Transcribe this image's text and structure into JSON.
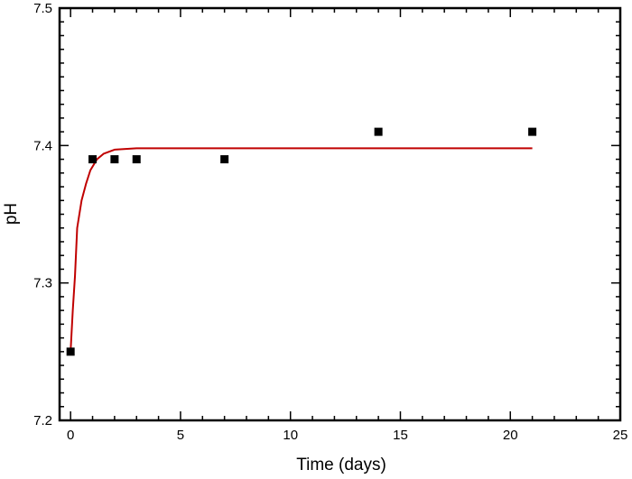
{
  "chart_data": {
    "type": "scatter",
    "xlabel": "Time (days)",
    "ylabel": "pH",
    "xlim": [
      -0.5,
      25
    ],
    "ylim": [
      7.2,
      7.5
    ],
    "xticks": [
      0,
      5,
      10,
      15,
      20,
      25
    ],
    "yticks": [
      7.2,
      7.3,
      7.4,
      7.5
    ],
    "x_tick_labels": [
      "0",
      "5",
      "10",
      "15",
      "20",
      "25"
    ],
    "y_tick_labels": [
      "7.2",
      "7.3",
      "7.4",
      "7.5"
    ],
    "grid": false,
    "series": [
      {
        "kind": "points",
        "marker": "square",
        "color": "#000000",
        "x": [
          0,
          1,
          2,
          3,
          7,
          14,
          21
        ],
        "y": [
          7.25,
          7.39,
          7.39,
          7.39,
          7.39,
          7.41,
          7.41
        ]
      },
      {
        "kind": "fit-line",
        "color": "#c00000",
        "x": [
          0,
          0.1,
          0.2,
          0.3,
          0.5,
          0.7,
          0.9,
          1.2,
          1.5,
          2,
          3,
          5,
          8,
          12,
          16,
          21
        ],
        "y": [
          7.25,
          7.28,
          7.305,
          7.34,
          7.36,
          7.372,
          7.382,
          7.39,
          7.394,
          7.397,
          7.398,
          7.398,
          7.398,
          7.398,
          7.398,
          7.398
        ]
      }
    ]
  }
}
